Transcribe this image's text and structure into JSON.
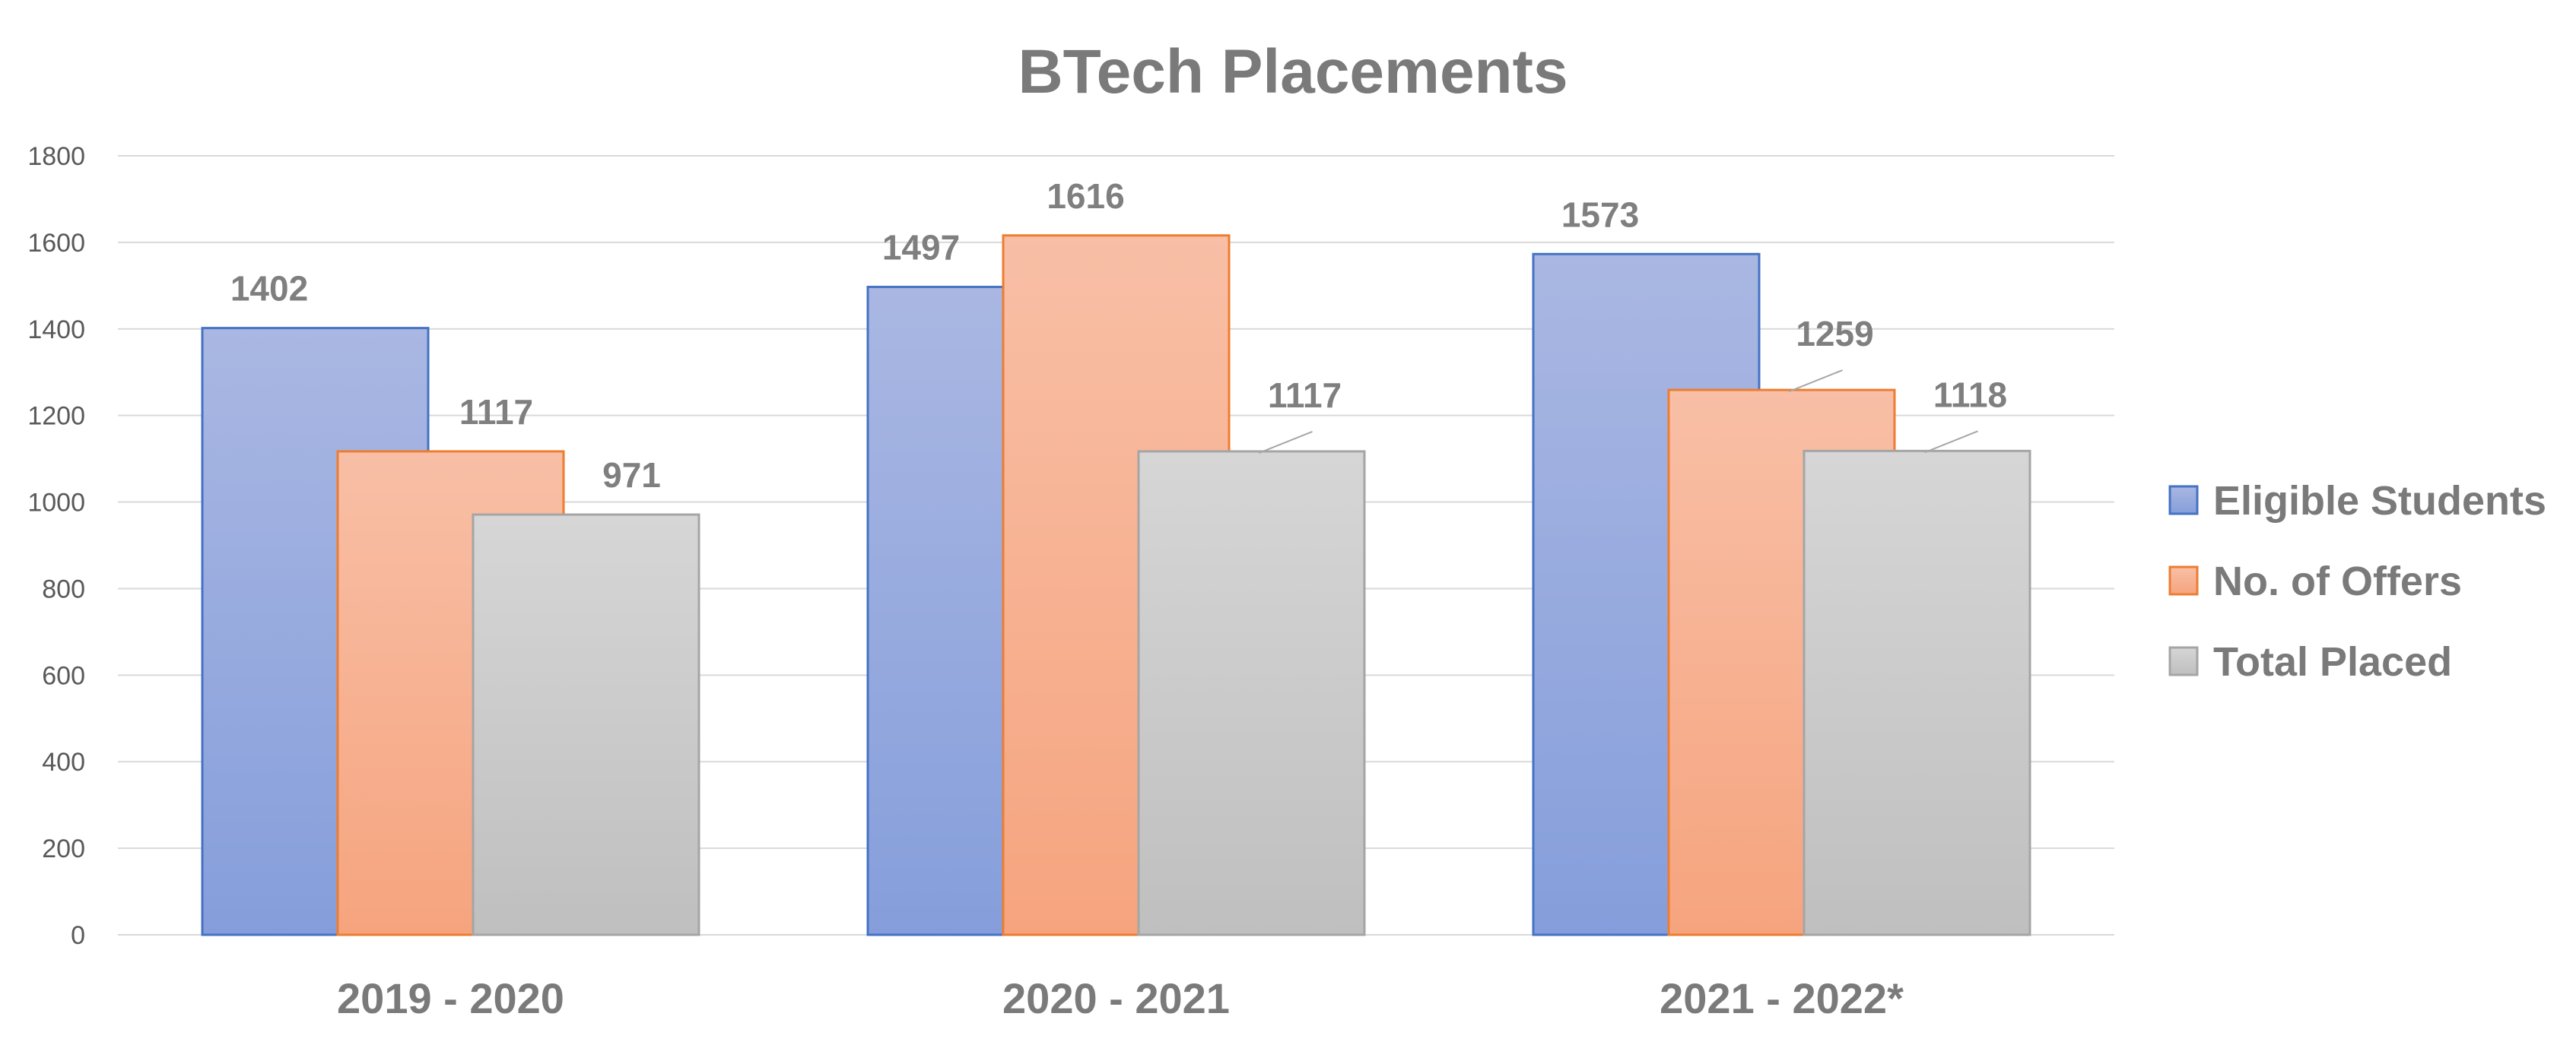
{
  "chart_data": {
    "type": "bar",
    "title": "BTech Placements",
    "categories": [
      "2019 - 2020",
      "2020 - 2021",
      "2021 - 2022*"
    ],
    "series": [
      {
        "name": "Eligible Students",
        "values": [
          1402,
          1497,
          1573
        ],
        "color": "#8fa3da",
        "stroke": "#4472c4"
      },
      {
        "name": "No. of Offers",
        "values": [
          1117,
          1616,
          1259
        ],
        "color": "#f6a985",
        "stroke": "#ed7d31"
      },
      {
        "name": "Total Placed",
        "values": [
          971,
          1117,
          1118
        ],
        "color": "#c8c8c8",
        "stroke": "#a5a5a5"
      }
    ],
    "ylim": [
      0,
      1800
    ],
    "yticks": [
      0,
      200,
      400,
      600,
      800,
      1000,
      1200,
      1400,
      1600,
      1800
    ],
    "grid": true,
    "legend": "right"
  }
}
